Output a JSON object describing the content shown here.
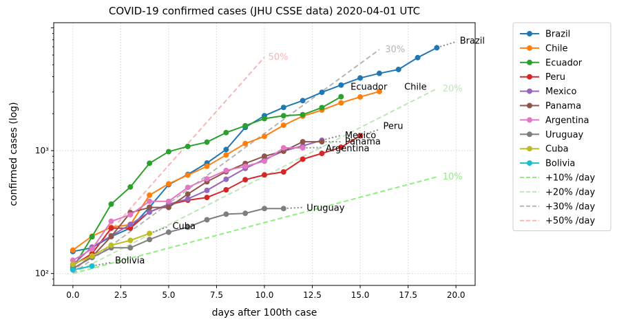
{
  "chart_data": {
    "type": "line",
    "title": "COVID-19 confirmed cases (JHU CSSE data) 2020-04-01 UTC",
    "xlabel": "days after 100th case",
    "ylabel": "confirmed cases (log)",
    "xlim": [
      -1,
      21
    ],
    "ylim": [
      80,
      11000
    ],
    "yscale": "log",
    "grid": true,
    "legend_position": "outside-right",
    "x_ticks": [
      0,
      2.5,
      5,
      7.5,
      10,
      12.5,
      15,
      17.5,
      20
    ],
    "x_tick_labels": [
      "0.0",
      "2.5",
      "5.0",
      "7.5",
      "10.0",
      "12.5",
      "15.0",
      "17.5",
      "20.0"
    ],
    "y_ticks": [
      100,
      1000
    ],
    "y_tick_labels": [
      "10²",
      "10³"
    ],
    "series": [
      {
        "name": "Brazil",
        "color": "#1f77b4",
        "label_x": 20.2,
        "label_y": 7800,
        "y": [
          151,
          162,
          200,
          234,
          346,
          529,
          640,
          793,
          1021,
          1546,
          1924,
          2247,
          2554,
          2985,
          3417,
          3904,
          4256,
          4579,
          5717,
          6880
        ],
        "trend": [
          [
            19,
            6880
          ],
          [
            20,
            7700
          ]
        ]
      },
      {
        "name": "Chile",
        "color": "#ff7f0e",
        "label_x": 17.3,
        "label_y": 3300,
        "y": [
          155,
          201,
          238,
          250,
          434,
          537,
          632,
          746,
          922,
          1142,
          1306,
          1610,
          1909,
          2139,
          2449,
          2738,
          3031
        ]
      },
      {
        "name": "Ecuador",
        "color": "#2ca02c",
        "label_x": 14.5,
        "label_y": 3300,
        "y": [
          111,
          199,
          367,
          506,
          789,
          981,
          1082,
          1173,
          1403,
          1595,
          1823,
          1924,
          1962,
          2240,
          2748
        ]
      },
      {
        "name": "Peru",
        "color": "#d62728",
        "label_x": 16.2,
        "label_y": 1580,
        "y": [
          117,
          145,
          234,
          234,
          318,
          363,
          395,
          416,
          480,
          580,
          635,
          671,
          852,
          950,
          1065,
          1323
        ],
        "trend": [
          [
            15,
            1323
          ],
          [
            16,
            1490
          ]
        ]
      },
      {
        "name": "Mexico",
        "color": "#9467bd",
        "label_x": 14.2,
        "label_y": 1330,
        "y": [
          118,
          164,
          203,
          251,
          316,
          367,
          405,
          475,
          585,
          717,
          848,
          993,
          1094,
          1215
        ],
        "trend": [
          [
            13,
            1215
          ],
          [
            14,
            1330
          ]
        ]
      },
      {
        "name": "Panama",
        "color": "#8c564b",
        "label_x": 14.2,
        "label_y": 1180,
        "y": [
          109,
          137,
          200,
          313,
          345,
          345,
          443,
          558,
          674,
          786,
          901,
          989,
          1181,
          1181
        ],
        "trend": [
          [
            13,
            1181
          ],
          [
            14,
            1180
          ]
        ]
      },
      {
        "name": "Argentina",
        "color": "#e377c2",
        "label_x": 13.2,
        "label_y": 1040,
        "y": [
          128,
          158,
          266,
          301,
          387,
          387,
          502,
          589,
          690,
          745,
          820,
          1054,
          1054
        ],
        "trend": [
          [
            12,
            1054
          ],
          [
            13,
            1060
          ]
        ]
      },
      {
        "name": "Uruguay",
        "color": "#7f7f7f",
        "label_x": 12.2,
        "label_y": 340,
        "y": [
          110,
          135,
          162,
          162,
          189,
          217,
          238,
          274,
          304,
          309,
          338,
          338
        ],
        "trend": [
          [
            11,
            338
          ],
          [
            12,
            345
          ]
        ]
      },
      {
        "name": "Cuba",
        "color": "#bcbd22",
        "label_x": 5.2,
        "label_y": 242,
        "y": [
          119,
          139,
          170,
          186,
          212
        ],
        "trend": [
          [
            4,
            212
          ],
          [
            5,
            242
          ]
        ]
      },
      {
        "name": "Bolivia",
        "color": "#17becf",
        "label_x": 2.2,
        "label_y": 127,
        "y": [
          107,
          115
        ],
        "trend": [
          [
            1,
            115
          ],
          [
            2,
            123
          ]
        ]
      }
    ],
    "reference_lines": [
      {
        "name": "+10% /day",
        "label": "10%",
        "color": "#8fef7e",
        "rate": 0.1,
        "x_end": 19,
        "label_x": 19.3
      },
      {
        "name": "+20% /day",
        "label": "20%",
        "color": "#bfe6b6",
        "rate": 0.2,
        "x_end": 19,
        "label_x": 19.3
      },
      {
        "name": "+30% /day",
        "label": "30%",
        "color": "#b5b5b5",
        "rate": 0.3,
        "x_end": 16,
        "label_x": 16.3
      },
      {
        "name": "+50% /day",
        "label": "50%",
        "color": "#f7b5b5",
        "rate": 0.5,
        "x_end": 10,
        "label_x": 10.2
      }
    ]
  }
}
